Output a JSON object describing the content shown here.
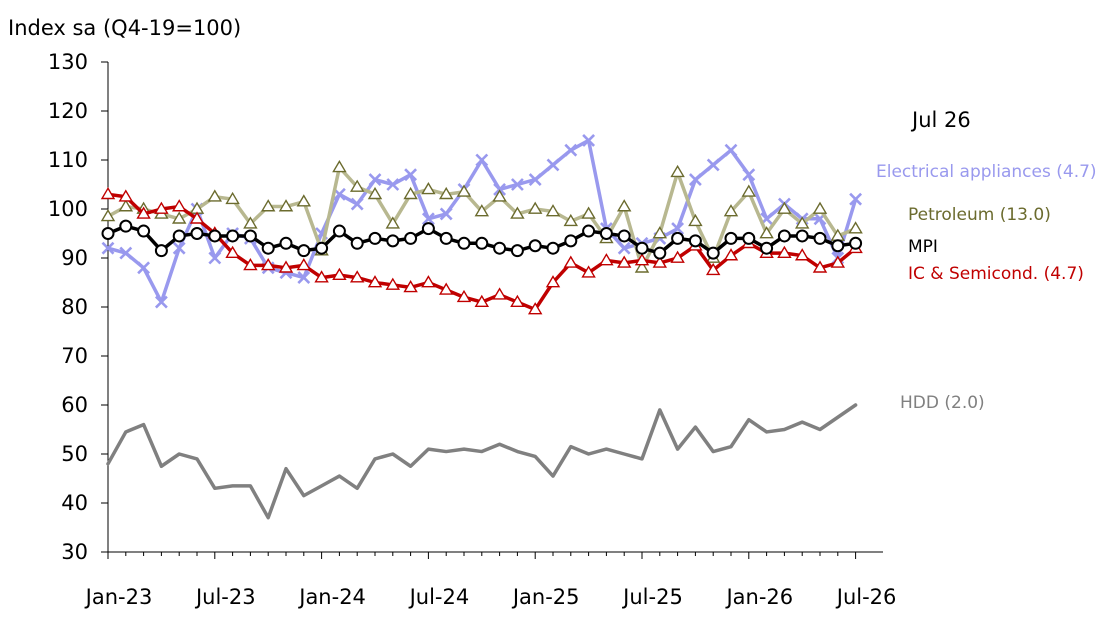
{
  "chart_data": {
    "type": "line",
    "title": "",
    "ylabel": "Index sa (Q4-19=100)",
    "xlabel": "",
    "annotation": "Jul 26",
    "ylim": [
      30,
      130
    ],
    "yticks": [
      30,
      40,
      50,
      60,
      70,
      80,
      90,
      100,
      110,
      120,
      130
    ],
    "xticks": [
      "Jan-23",
      "Jul-23",
      "Jan-24",
      "Jul-24",
      "Jan-25",
      "Jul-25",
      "Jan-26",
      "Jul-26"
    ],
    "x": [
      "Jan-23",
      "Feb-23",
      "Mar-23",
      "Apr-23",
      "May-23",
      "Jun-23",
      "Jul-23",
      "Aug-23",
      "Sep-23",
      "Oct-23",
      "Nov-23",
      "Dec-23",
      "Jan-24",
      "Feb-24",
      "Mar-24",
      "Apr-24",
      "May-24",
      "Jun-24",
      "Jul-24",
      "Aug-24",
      "Sep-24",
      "Oct-24",
      "Nov-24",
      "Dec-24",
      "Jan-25",
      "Feb-25",
      "Mar-25",
      "Apr-25",
      "May-25",
      "Jun-25",
      "Jul-25",
      "Aug-25",
      "Sep-25",
      "Oct-25",
      "Nov-25",
      "Dec-25",
      "Jan-26",
      "Feb-26",
      "Mar-26",
      "Apr-26",
      "May-26",
      "Jun-26",
      "Jul-26"
    ],
    "series": [
      {
        "name": "Electrical appliances (4.7)",
        "color": "#9999ee",
        "marker": "x",
        "values": [
          92,
          91,
          88,
          81,
          92,
          100,
          90,
          95,
          94,
          88,
          87,
          86,
          95,
          103,
          101,
          106,
          105,
          107,
          98,
          99,
          104,
          110,
          104,
          105,
          106,
          109,
          112,
          114,
          96,
          92,
          93,
          94,
          96,
          106,
          109,
          112,
          107,
          98,
          101,
          98,
          98,
          90,
          102
        ]
      },
      {
        "name": "Petroleum (13.0)",
        "color": "#b8b890",
        "marker": "triangle",
        "markerColor": "#6b6b2e",
        "values": [
          98.5,
          100.5,
          100,
          99,
          98,
          100,
          102.5,
          102,
          97,
          100.5,
          100.5,
          101.5,
          91.5,
          108.5,
          104.5,
          103,
          97,
          103,
          104,
          103,
          103.5,
          99.5,
          102.5,
          99,
          100,
          99.5,
          97.5,
          99,
          94,
          100.5,
          88,
          95,
          107.5,
          97.5,
          90,
          99.5,
          103.5,
          95,
          100,
          97,
          100,
          94.5,
          96
        ]
      },
      {
        "name": "IC & Semicond. (4.7)",
        "color": "#c00000",
        "marker": "triangle",
        "markerColor": "#c00000",
        "values": [
          103,
          102.5,
          99,
          100,
          100.5,
          98,
          95,
          91,
          88.5,
          88.5,
          88,
          88.5,
          86,
          86.5,
          86,
          85,
          84.5,
          84,
          85,
          83.5,
          82,
          81,
          82.5,
          81,
          79.5,
          85,
          89,
          87,
          89.5,
          89,
          89.5,
          89,
          90,
          92.5,
          87.5,
          90.5,
          93,
          91,
          91,
          90.5,
          88,
          89,
          92
        ]
      },
      {
        "name": "MPI",
        "color": "#000000",
        "marker": "circle",
        "values": [
          95,
          96.5,
          95.5,
          91.5,
          94.5,
          95,
          94.5,
          94.5,
          94.5,
          92,
          93,
          91.5,
          92,
          95.5,
          93,
          94,
          93.5,
          94,
          96,
          94,
          93,
          93,
          92,
          91.5,
          92.5,
          92,
          93.5,
          95.5,
          95,
          94.5,
          92,
          91,
          94,
          93.5,
          91,
          94,
          94,
          92,
          94.5,
          94.5,
          94,
          92.5,
          93
        ]
      },
      {
        "name": "HDD (2.0)",
        "color": "#808080",
        "marker": "none",
        "values": [
          48,
          54.5,
          56,
          47.5,
          50,
          49,
          43,
          43.5,
          43.5,
          37,
          47,
          41.5,
          43.5,
          45.5,
          43,
          49,
          50,
          47.5,
          51,
          50.5,
          51,
          50.5,
          52,
          50.5,
          49.5,
          45.5,
          51.5,
          50,
          51,
          50,
          49,
          59,
          51,
          55.5,
          50.5,
          51.5,
          57,
          54.5,
          55,
          56.5,
          55,
          57.5,
          60
        ]
      }
    ]
  }
}
